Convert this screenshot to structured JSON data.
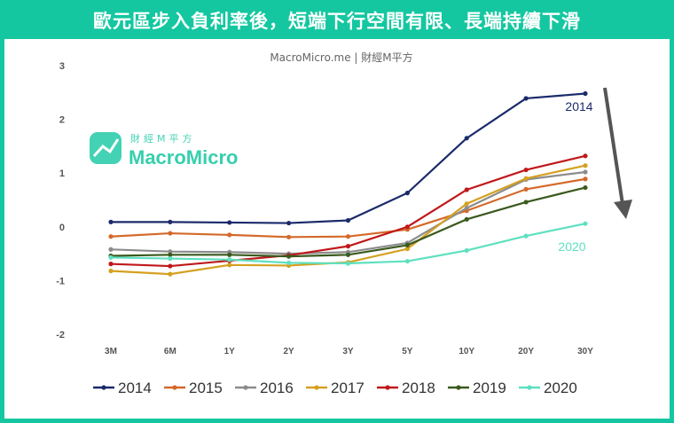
{
  "header": {
    "title": "歐元區步入負利率後，短端下行空間有限、長端持續下滑"
  },
  "source_label": "MacroMicro.me | 財經M平方",
  "watermark": {
    "brand": "MacroMicro",
    "sub": "財經M平方"
  },
  "annotations": {
    "top": "2014",
    "bottom": "2020"
  },
  "colors": {
    "frame": "#14c7a0",
    "arrow": "#555555"
  },
  "chart_data": {
    "type": "line",
    "title": "歐元區步入負利率後，短端下行空間有限、長端持續下滑",
    "xlabel": "",
    "ylabel": "",
    "ylim": [
      -2,
      3
    ],
    "yticks": [
      "3",
      "2",
      "1",
      "0",
      "-1",
      "-2"
    ],
    "categories": [
      "3M",
      "6M",
      "1Y",
      "2Y",
      "3Y",
      "5Y",
      "10Y",
      "20Y",
      "30Y"
    ],
    "legend_position": "bottom",
    "grid": false,
    "series": [
      {
        "name": "2014",
        "color": "#1b2a6b",
        "values": [
          0.09,
          0.09,
          0.08,
          0.07,
          0.12,
          0.63,
          1.65,
          2.39,
          2.48
        ]
      },
      {
        "name": "2015",
        "color": "#d4692a",
        "values": [
          -0.18,
          -0.12,
          -0.15,
          -0.19,
          -0.18,
          -0.05,
          0.3,
          0.7,
          0.89
        ]
      },
      {
        "name": "2016",
        "color": "#8c8c8c",
        "values": [
          -0.42,
          -0.46,
          -0.47,
          -0.5,
          -0.47,
          -0.3,
          0.35,
          0.88,
          1.02
        ]
      },
      {
        "name": "2017",
        "color": "#d4a020",
        "values": [
          -0.82,
          -0.88,
          -0.71,
          -0.72,
          -0.66,
          -0.41,
          0.43,
          0.9,
          1.14
        ]
      },
      {
        "name": "2018",
        "color": "#c0181a",
        "values": [
          -0.69,
          -0.73,
          -0.63,
          -0.53,
          -0.36,
          0.0,
          0.69,
          1.06,
          1.32
        ]
      },
      {
        "name": "2019",
        "color": "#3a5a1e",
        "values": [
          -0.54,
          -0.52,
          -0.52,
          -0.55,
          -0.52,
          -0.34,
          0.14,
          0.46,
          0.73
        ]
      },
      {
        "name": "2020",
        "color": "#5ee0c0",
        "values": [
          -0.57,
          -0.59,
          -0.61,
          -0.67,
          -0.68,
          -0.64,
          -0.44,
          -0.17,
          0.06
        ]
      }
    ]
  }
}
